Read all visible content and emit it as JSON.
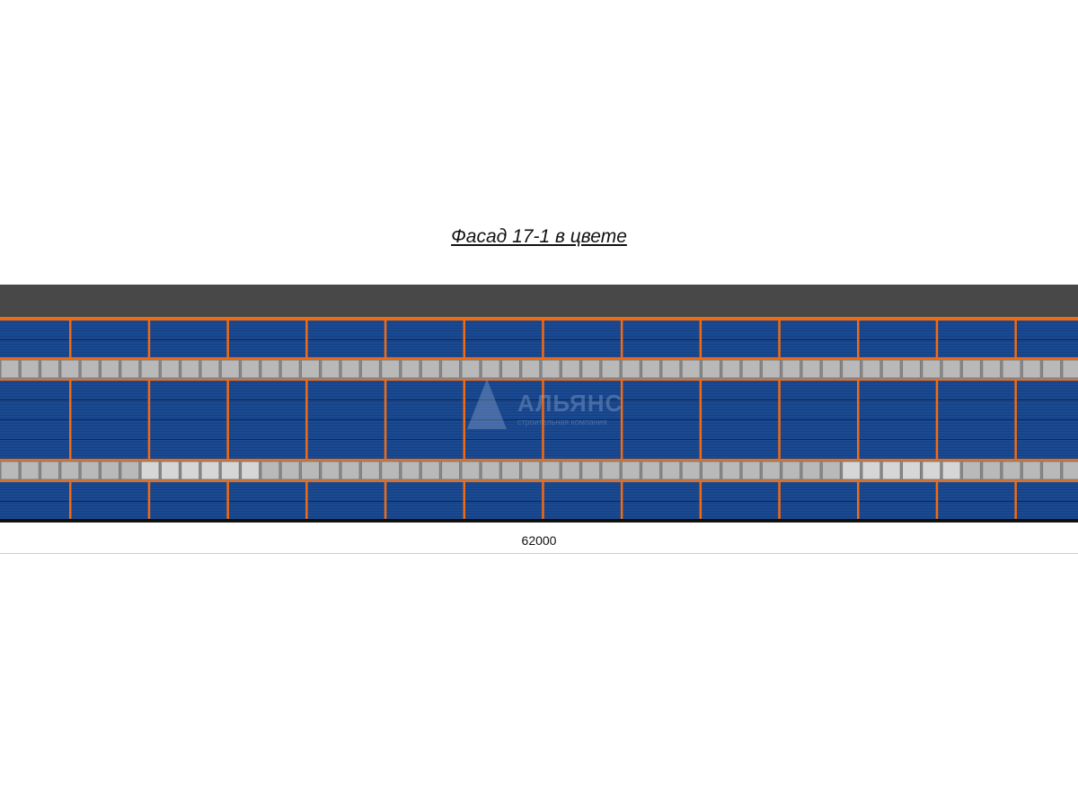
{
  "title": "Фасад 17-1 в цвете",
  "dimension": "62000",
  "watermark": {
    "name": "АЛЬЯНС",
    "subtitle": "строительная компания"
  },
  "colors": {
    "roof": "#484848",
    "trim": "#f26a12",
    "cladding": "#1a4a94",
    "window": "#b9b9b9",
    "window_light": "#d6d6d6",
    "base": "#111111"
  }
}
